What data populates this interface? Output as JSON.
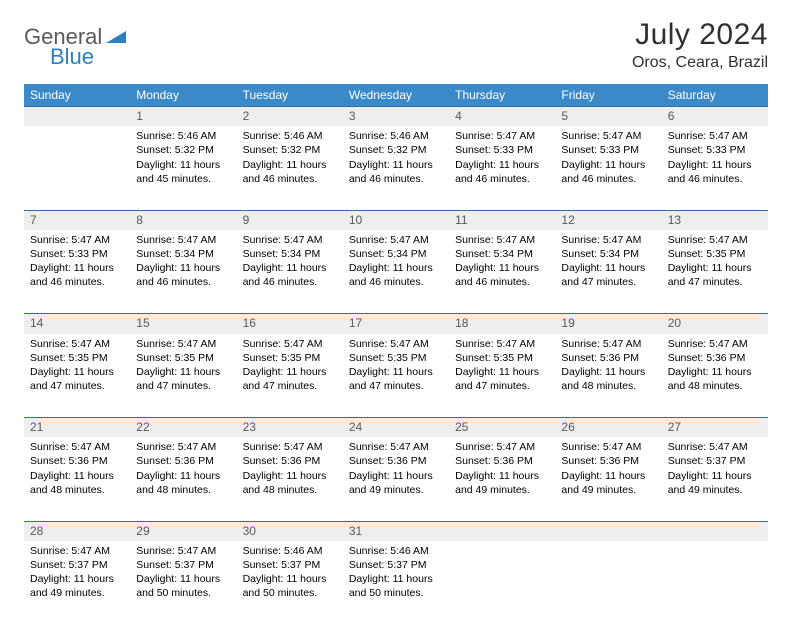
{
  "logo": {
    "text1": "General",
    "text2": "Blue",
    "color_general": "#5a5a5a",
    "color_blue": "#2f7fc0"
  },
  "title": "July 2024",
  "location": "Oros, Ceara, Brazil",
  "header_bg": "#3b89c7",
  "header_fg": "#ffffff",
  "daynum_bg": "#eeeeee",
  "daynum_border": "#2f6fa8",
  "weekdays": [
    "Sunday",
    "Monday",
    "Tuesday",
    "Wednesday",
    "Thursday",
    "Friday",
    "Saturday"
  ],
  "cell_fontsize": 10.5,
  "daynum_fontsize": 12,
  "weeks": [
    [
      {
        "day": "",
        "lines": []
      },
      {
        "day": "1",
        "lines": [
          "Sunrise: 5:46 AM",
          "Sunset: 5:32 PM",
          "Daylight: 11 hours and 45 minutes."
        ]
      },
      {
        "day": "2",
        "lines": [
          "Sunrise: 5:46 AM",
          "Sunset: 5:32 PM",
          "Daylight: 11 hours and 46 minutes."
        ]
      },
      {
        "day": "3",
        "lines": [
          "Sunrise: 5:46 AM",
          "Sunset: 5:32 PM",
          "Daylight: 11 hours and 46 minutes."
        ]
      },
      {
        "day": "4",
        "lines": [
          "Sunrise: 5:47 AM",
          "Sunset: 5:33 PM",
          "Daylight: 11 hours and 46 minutes."
        ]
      },
      {
        "day": "5",
        "lines": [
          "Sunrise: 5:47 AM",
          "Sunset: 5:33 PM",
          "Daylight: 11 hours and 46 minutes."
        ]
      },
      {
        "day": "6",
        "lines": [
          "Sunrise: 5:47 AM",
          "Sunset: 5:33 PM",
          "Daylight: 11 hours and 46 minutes."
        ]
      }
    ],
    [
      {
        "day": "7",
        "lines": [
          "Sunrise: 5:47 AM",
          "Sunset: 5:33 PM",
          "Daylight: 11 hours and 46 minutes."
        ]
      },
      {
        "day": "8",
        "lines": [
          "Sunrise: 5:47 AM",
          "Sunset: 5:34 PM",
          "Daylight: 11 hours and 46 minutes."
        ]
      },
      {
        "day": "9",
        "lines": [
          "Sunrise: 5:47 AM",
          "Sunset: 5:34 PM",
          "Daylight: 11 hours and 46 minutes."
        ]
      },
      {
        "day": "10",
        "lines": [
          "Sunrise: 5:47 AM",
          "Sunset: 5:34 PM",
          "Daylight: 11 hours and 46 minutes."
        ]
      },
      {
        "day": "11",
        "lines": [
          "Sunrise: 5:47 AM",
          "Sunset: 5:34 PM",
          "Daylight: 11 hours and 46 minutes."
        ]
      },
      {
        "day": "12",
        "lines": [
          "Sunrise: 5:47 AM",
          "Sunset: 5:34 PM",
          "Daylight: 11 hours and 47 minutes."
        ]
      },
      {
        "day": "13",
        "lines": [
          "Sunrise: 5:47 AM",
          "Sunset: 5:35 PM",
          "Daylight: 11 hours and 47 minutes."
        ]
      }
    ],
    [
      {
        "day": "14",
        "lines": [
          "Sunrise: 5:47 AM",
          "Sunset: 5:35 PM",
          "Daylight: 11 hours and 47 minutes."
        ]
      },
      {
        "day": "15",
        "lines": [
          "Sunrise: 5:47 AM",
          "Sunset: 5:35 PM",
          "Daylight: 11 hours and 47 minutes."
        ]
      },
      {
        "day": "16",
        "lines": [
          "Sunrise: 5:47 AM",
          "Sunset: 5:35 PM",
          "Daylight: 11 hours and 47 minutes."
        ]
      },
      {
        "day": "17",
        "lines": [
          "Sunrise: 5:47 AM",
          "Sunset: 5:35 PM",
          "Daylight: 11 hours and 47 minutes."
        ]
      },
      {
        "day": "18",
        "lines": [
          "Sunrise: 5:47 AM",
          "Sunset: 5:35 PM",
          "Daylight: 11 hours and 47 minutes."
        ]
      },
      {
        "day": "19",
        "lines": [
          "Sunrise: 5:47 AM",
          "Sunset: 5:36 PM",
          "Daylight: 11 hours and 48 minutes."
        ]
      },
      {
        "day": "20",
        "lines": [
          "Sunrise: 5:47 AM",
          "Sunset: 5:36 PM",
          "Daylight: 11 hours and 48 minutes."
        ]
      }
    ],
    [
      {
        "day": "21",
        "lines": [
          "Sunrise: 5:47 AM",
          "Sunset: 5:36 PM",
          "Daylight: 11 hours and 48 minutes."
        ]
      },
      {
        "day": "22",
        "lines": [
          "Sunrise: 5:47 AM",
          "Sunset: 5:36 PM",
          "Daylight: 11 hours and 48 minutes."
        ]
      },
      {
        "day": "23",
        "lines": [
          "Sunrise: 5:47 AM",
          "Sunset: 5:36 PM",
          "Daylight: 11 hours and 48 minutes."
        ]
      },
      {
        "day": "24",
        "lines": [
          "Sunrise: 5:47 AM",
          "Sunset: 5:36 PM",
          "Daylight: 11 hours and 49 minutes."
        ]
      },
      {
        "day": "25",
        "lines": [
          "Sunrise: 5:47 AM",
          "Sunset: 5:36 PM",
          "Daylight: 11 hours and 49 minutes."
        ]
      },
      {
        "day": "26",
        "lines": [
          "Sunrise: 5:47 AM",
          "Sunset: 5:36 PM",
          "Daylight: 11 hours and 49 minutes."
        ]
      },
      {
        "day": "27",
        "lines": [
          "Sunrise: 5:47 AM",
          "Sunset: 5:37 PM",
          "Daylight: 11 hours and 49 minutes."
        ]
      }
    ],
    [
      {
        "day": "28",
        "lines": [
          "Sunrise: 5:47 AM",
          "Sunset: 5:37 PM",
          "Daylight: 11 hours and 49 minutes."
        ]
      },
      {
        "day": "29",
        "lines": [
          "Sunrise: 5:47 AM",
          "Sunset: 5:37 PM",
          "Daylight: 11 hours and 50 minutes."
        ]
      },
      {
        "day": "30",
        "lines": [
          "Sunrise: 5:46 AM",
          "Sunset: 5:37 PM",
          "Daylight: 11 hours and 50 minutes."
        ]
      },
      {
        "day": "31",
        "lines": [
          "Sunrise: 5:46 AM",
          "Sunset: 5:37 PM",
          "Daylight: 11 hours and 50 minutes."
        ]
      },
      {
        "day": "",
        "lines": []
      },
      {
        "day": "",
        "lines": []
      },
      {
        "day": "",
        "lines": []
      }
    ]
  ]
}
